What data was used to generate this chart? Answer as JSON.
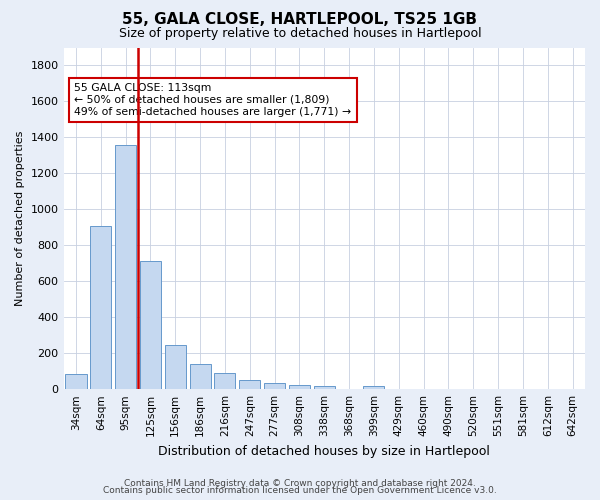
{
  "title": "55, GALA CLOSE, HARTLEPOOL, TS25 1GB",
  "subtitle": "Size of property relative to detached houses in Hartlepool",
  "xlabel": "Distribution of detached houses by size in Hartlepool",
  "ylabel": "Number of detached properties",
  "categories": [
    "34sqm",
    "64sqm",
    "95sqm",
    "125sqm",
    "156sqm",
    "186sqm",
    "216sqm",
    "247sqm",
    "277sqm",
    "308sqm",
    "338sqm",
    "368sqm",
    "399sqm",
    "429sqm",
    "460sqm",
    "490sqm",
    "520sqm",
    "551sqm",
    "581sqm",
    "612sqm",
    "642sqm"
  ],
  "values": [
    85,
    905,
    1360,
    710,
    248,
    140,
    88,
    52,
    32,
    22,
    15,
    0,
    20,
    0,
    0,
    0,
    0,
    0,
    0,
    0,
    0
  ],
  "bar_color": "#c5d8f0",
  "bar_edge_color": "#6699cc",
  "vline_color": "#cc0000",
  "vline_x_index": 2,
  "annotation_text": "55 GALA CLOSE: 113sqm\n← 50% of detached houses are smaller (1,809)\n49% of semi-detached houses are larger (1,771) →",
  "annotation_box_facecolor": "#ffffff",
  "annotation_box_edgecolor": "#cc0000",
  "ylim": [
    0,
    1900
  ],
  "yticks": [
    0,
    200,
    400,
    600,
    800,
    1000,
    1200,
    1400,
    1600,
    1800
  ],
  "footer_line1": "Contains HM Land Registry data © Crown copyright and database right 2024.",
  "footer_line2": "Contains public sector information licensed under the Open Government Licence v3.0.",
  "bg_color": "#e8eef8",
  "plot_bg_color": "#ffffff",
  "grid_color": "#c8d0e0",
  "title_fontsize": 11,
  "subtitle_fontsize": 9,
  "ylabel_fontsize": 8,
  "xlabel_fontsize": 9,
  "tick_fontsize": 8,
  "xtick_fontsize": 7.5,
  "footer_fontsize": 6.5
}
